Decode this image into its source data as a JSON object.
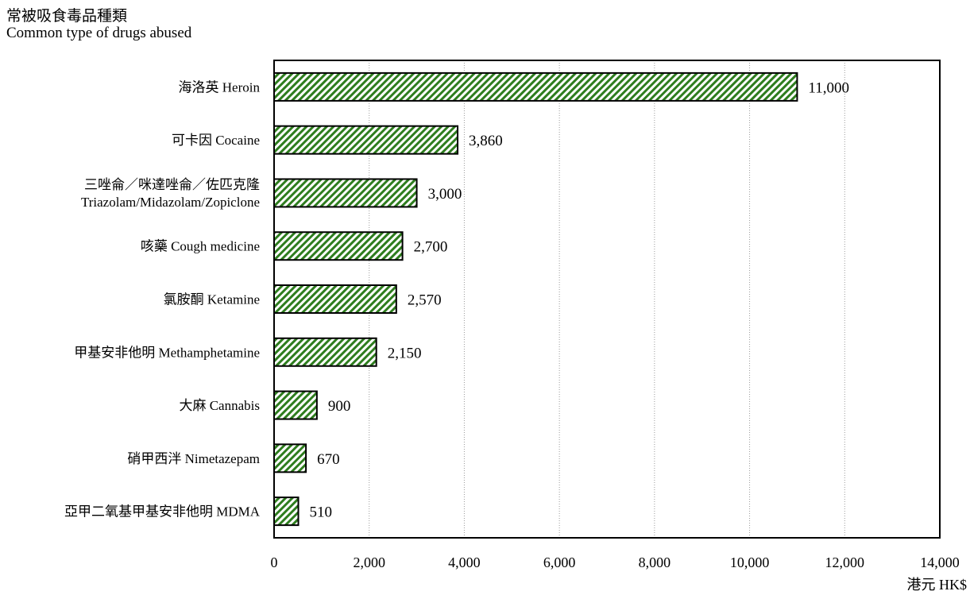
{
  "chart_data": {
    "type": "bar",
    "orientation": "horizontal",
    "y_title_line1": "常被吸食毒品種類",
    "y_title_line2": "Common type of drugs abused",
    "x_unit": "港元 HK$",
    "categories": [
      [
        "海洛英 Heroin"
      ],
      [
        "可卡因 Cocaine"
      ],
      [
        "三唑侖／咪達唑侖／佐匹克隆",
        "Triazolam/Midazolam/Zopiclone"
      ],
      [
        "咳藥 Cough medicine"
      ],
      [
        "氯胺酮 Ketamine"
      ],
      [
        "甲基安非他明 Methamphetamine"
      ],
      [
        "大麻 Cannabis"
      ],
      [
        "硝甲西泮 Nimetazepam"
      ],
      [
        "亞甲二氧基甲基安非他明 MDMA"
      ]
    ],
    "values": [
      11000,
      3860,
      3000,
      2700,
      2570,
      2150,
      900,
      670,
      510
    ],
    "value_labels": [
      "11,000",
      "3,860",
      "3,000",
      "2,700",
      "2,570",
      "2,150",
      "900",
      "670",
      "510"
    ],
    "xlim": [
      0,
      14000
    ],
    "x_ticks": [
      0,
      2000,
      4000,
      6000,
      8000,
      10000,
      12000,
      14000
    ],
    "x_tick_labels": [
      "0",
      "2,000",
      "4,000",
      "6,000",
      "8,000",
      "10,000",
      "12,000",
      "14,000"
    ],
    "grid": "vertical dotted",
    "bar_fill": "green diagonal hatch",
    "colors": {
      "bar_hatch": "#2e7d1e",
      "bar_outline": "#000000",
      "grid": "#9a9a9a"
    }
  }
}
